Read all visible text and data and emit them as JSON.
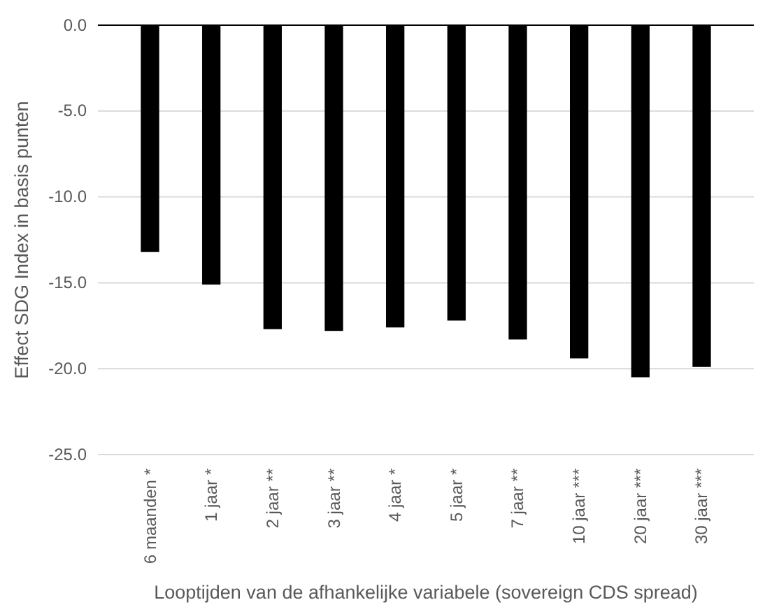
{
  "chart_data": {
    "type": "bar",
    "xlabel": "Looptijden van de afhankelijke variabele (sovereign CDS spread)",
    "ylabel": "Effect SDG Index in basis punten",
    "categories": [
      "6 maanden *",
      "1 jaar *",
      "2 jaar **",
      "3 jaar **",
      "4 jaar *",
      "5 jaar *",
      "7 jaar **",
      "10 jaar ***",
      "20 jaar ***",
      "30 jaar ***"
    ],
    "values": [
      -13.2,
      -15.1,
      -17.7,
      -17.8,
      -17.6,
      -17.2,
      -18.3,
      -19.4,
      -20.5,
      -19.9
    ],
    "color": "#000000",
    "ylim": [
      -25,
      0
    ],
    "yticks": [
      {
        "value": -25,
        "label": "-25.0"
      },
      {
        "value": -20,
        "label": "-20.0"
      },
      {
        "value": -15,
        "label": "-15.0"
      },
      {
        "value": -10,
        "label": "-10.0"
      },
      {
        "value": -5,
        "label": "-5.0"
      },
      {
        "value": 0,
        "label": "0.0"
      }
    ],
    "grid": "y"
  }
}
